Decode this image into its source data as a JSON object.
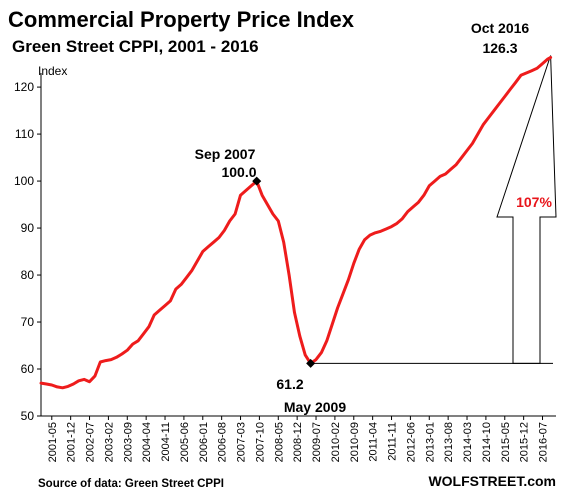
{
  "chart_data": {
    "type": "line",
    "title": "Commercial Property Price Index",
    "subtitle": "Green Street CPPI, 2001 - 2016",
    "ylabel": "Index",
    "ylim": [
      50,
      125
    ],
    "yticks": [
      50,
      60,
      70,
      80,
      90,
      100,
      110,
      120
    ],
    "x_tick_labels": [
      "2001-05",
      "2001-12",
      "2002-07",
      "2003-02",
      "2003-09",
      "2004-04",
      "2004-11",
      "2005-06",
      "2006-01",
      "2006-08",
      "2007-03",
      "2007-10",
      "2008-05",
      "2008-12",
      "2009-07",
      "2010-02",
      "2010-09",
      "2011-04",
      "2011-11",
      "2012-06",
      "2013-01",
      "2013-08",
      "2014-03",
      "2014-10",
      "2015-05",
      "2015-12",
      "2016-07"
    ],
    "grid": false,
    "legend": "none",
    "line_color": "#ee1c1c",
    "series": [
      {
        "x": [
          "2001-01",
          "2001-03",
          "2001-05",
          "2001-07",
          "2001-09",
          "2001-11",
          "2002-01",
          "2002-03",
          "2002-05",
          "2002-07",
          "2002-09",
          "2002-11",
          "2003-01",
          "2003-03",
          "2003-05",
          "2003-07",
          "2003-09",
          "2003-11",
          "2004-01",
          "2004-03",
          "2004-05",
          "2004-07",
          "2004-09",
          "2004-11",
          "2005-01",
          "2005-03",
          "2005-05",
          "2005-07",
          "2005-09",
          "2005-11",
          "2006-01",
          "2006-03",
          "2006-05",
          "2006-07",
          "2006-09",
          "2006-11",
          "2007-01",
          "2007-03",
          "2007-05",
          "2007-07",
          "2007-09",
          "2007-11",
          "2008-01",
          "2008-03",
          "2008-05",
          "2008-07",
          "2008-09",
          "2008-11",
          "2009-01",
          "2009-03",
          "2009-05",
          "2009-07",
          "2009-09",
          "2009-11",
          "2010-01",
          "2010-03",
          "2010-05",
          "2010-07",
          "2010-09",
          "2010-11",
          "2011-01",
          "2011-03",
          "2011-05",
          "2011-07",
          "2011-09",
          "2011-11",
          "2012-01",
          "2012-03",
          "2012-05",
          "2012-07",
          "2012-09",
          "2012-11",
          "2013-01",
          "2013-03",
          "2013-05",
          "2013-07",
          "2013-09",
          "2013-11",
          "2014-01",
          "2014-03",
          "2014-05",
          "2014-07",
          "2014-09",
          "2014-11",
          "2015-01",
          "2015-03",
          "2015-05",
          "2015-07",
          "2015-09",
          "2015-11",
          "2016-01",
          "2016-03",
          "2016-05",
          "2016-07",
          "2016-09",
          "2016-10"
        ],
        "values": [
          57.0,
          56.8,
          56.6,
          56.2,
          56.0,
          56.3,
          56.8,
          57.5,
          57.8,
          57.3,
          58.5,
          61.5,
          61.8,
          62.0,
          62.5,
          63.2,
          64.0,
          65.3,
          66.0,
          67.5,
          69.0,
          71.5,
          72.5,
          73.5,
          74.5,
          77.0,
          78.0,
          79.5,
          81.0,
          83.0,
          85.0,
          86.0,
          87.0,
          88.0,
          89.5,
          91.5,
          93.0,
          97.0,
          98.0,
          99.0,
          100.0,
          97.0,
          95.0,
          93.0,
          91.5,
          87.0,
          80.0,
          72.0,
          67.0,
          63.0,
          61.2,
          62.0,
          63.5,
          66.0,
          69.5,
          73.0,
          76.0,
          79.0,
          82.5,
          85.5,
          87.5,
          88.5,
          89.0,
          89.3,
          89.8,
          90.3,
          91.0,
          92.0,
          93.5,
          94.5,
          95.5,
          97.0,
          99.0,
          100.0,
          101.0,
          101.5,
          102.5,
          103.5,
          105.0,
          106.5,
          108.0,
          110.0,
          112.0,
          113.5,
          115.0,
          116.5,
          118.0,
          119.5,
          121.0,
          122.5,
          123.0,
          123.5,
          124.0,
          125.0,
          126.0,
          126.3
        ]
      }
    ],
    "annotations": {
      "peak_2007": {
        "date_label": "Sep 2007",
        "value_label": "100.0",
        "x": "2007-09",
        "y": 100.0
      },
      "trough_2009": {
        "value_label": "61.2",
        "date_label": "May 2009",
        "x": "2009-05",
        "y": 61.2
      },
      "peak_2016": {
        "date_label": "Oct 2016",
        "value_label": "126.3",
        "x": "2016-10",
        "y": 126.3
      },
      "gain_label": "107%"
    },
    "source": "Source of data: Green Street CPPI",
    "brand": "WOLFSTREET.com"
  }
}
